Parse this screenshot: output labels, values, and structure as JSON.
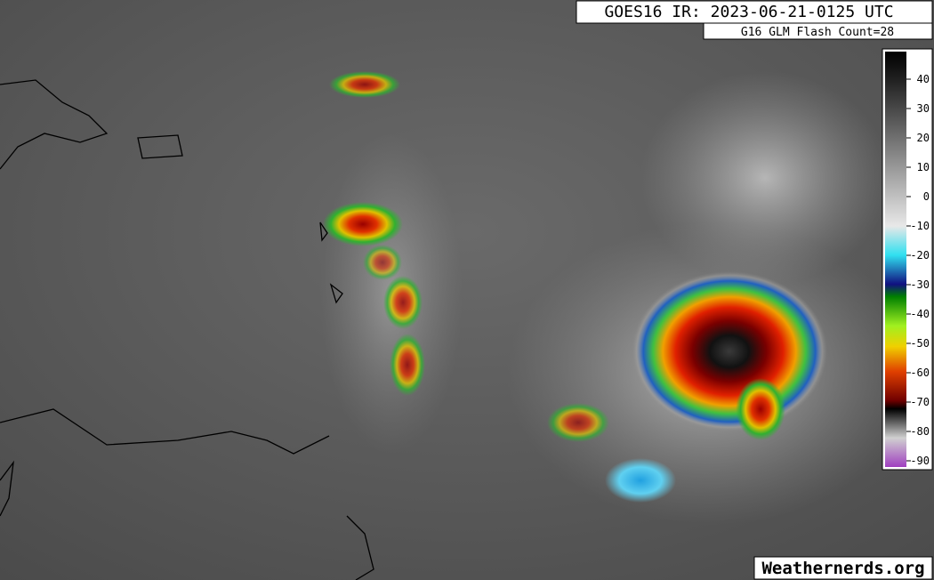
{
  "header": {
    "title": "GOES16 IR: 2023-06-21-0125 UTC",
    "subtitle": "G16 GLM Flash Count=28"
  },
  "colorbar": {
    "ticks": [
      40,
      30,
      20,
      10,
      0,
      -10,
      -20,
      -30,
      -40,
      -50,
      -60,
      -70,
      -80,
      -90
    ]
  },
  "footer": {
    "credit": "Weathernerds.org"
  }
}
